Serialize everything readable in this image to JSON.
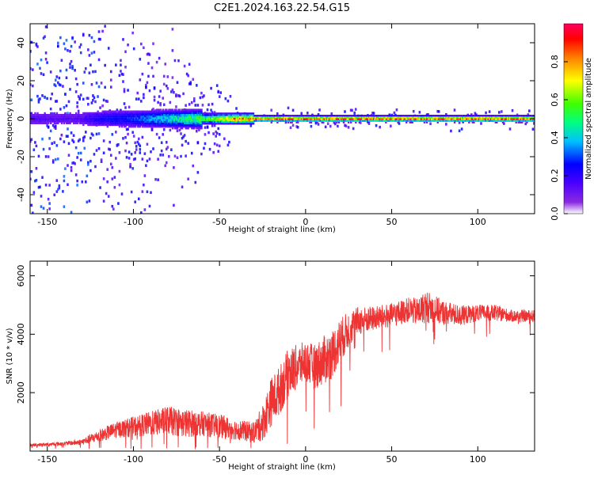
{
  "title": "C2E1.2024.163.22.54.G15",
  "colors": {
    "snr_line": "#ee3333",
    "axis": "#000000",
    "background": "#ffffff",
    "spectro_center": "#ff2a2a",
    "colormap": [
      "#ffffff",
      "#8a2be2",
      "#4b00ff",
      "#0000ff",
      "#00c0ff",
      "#00ff80",
      "#40ff00",
      "#ffff00",
      "#ff8000",
      "#ff0000",
      "#ff0060"
    ]
  },
  "chart_data": [
    {
      "type": "heatmap",
      "title": "C2E1.2024.163.22.54.G15",
      "xlabel": "Height of straight line (km)",
      "ylabel": "Frequency (Hz)",
      "xlim": [
        -160,
        133
      ],
      "ylim": [
        -50,
        50
      ],
      "x_ticks": [
        -150,
        -100,
        -50,
        0,
        50,
        100
      ],
      "y_ticks": [
        -40,
        -20,
        0,
        20,
        40
      ],
      "grid": false,
      "description_series": [
        {
          "name_hidden": true,
          "x": [
            -160,
            -130,
            -120,
            -100,
            -80,
            -60,
            -40,
            -20,
            0,
            20,
            50,
            75,
            100,
            133
          ],
          "y_center_hz": [
            0,
            0,
            0,
            0,
            0,
            0,
            0,
            0,
            0,
            0,
            0,
            0,
            0,
            0
          ],
          "peak_amplitude": [
            0.15,
            0.15,
            0.25,
            0.3,
            0.45,
            0.6,
            0.85,
            0.88,
            0.9,
            0.92,
            0.92,
            0.92,
            0.92,
            0.92
          ]
        }
      ],
      "colorbar": {
        "label": "Normalized spectral amplitude",
        "range": [
          0,
          1
        ],
        "ticks": [
          0.0,
          0.2,
          0.4,
          0.6,
          0.8
        ]
      }
    },
    {
      "type": "line",
      "xlabel": "Height of straight line (km)",
      "ylabel": "SNR (10 * v/v)",
      "xlim": [
        -160,
        133
      ],
      "ylim": [
        0,
        6500
      ],
      "x_ticks": [
        -150,
        -100,
        -50,
        0,
        50,
        100
      ],
      "y_ticks": [
        2000,
        4000,
        6000
      ],
      "grid": false,
      "x": [
        -160,
        -150,
        -140,
        -130,
        -120,
        -110,
        -100,
        -90,
        -80,
        -70,
        -60,
        -50,
        -40,
        -30,
        -25,
        -20,
        -15,
        -10,
        -5,
        0,
        5,
        10,
        15,
        20,
        25,
        30,
        40,
        50,
        60,
        65,
        70,
        75,
        80,
        90,
        100,
        110,
        120,
        133
      ],
      "series": [
        {
          "values": [
            200,
            220,
            250,
            300,
            500,
            700,
            800,
            900,
            1000,
            900,
            900,
            800,
            700,
            600,
            900,
            1600,
            2000,
            2600,
            2800,
            3000,
            2800,
            3000,
            3200,
            3700,
            4100,
            4400,
            4500,
            4600,
            4800,
            4700,
            4900,
            4800,
            4700,
            4600,
            4700,
            4700,
            4600,
            4600
          ],
          "spread": [
            80,
            80,
            100,
            150,
            300,
            400,
            500,
            600,
            700,
            700,
            600,
            600,
            500,
            500,
            900,
            1200,
            1200,
            1200,
            1100,
            1000,
            1100,
            1200,
            1200,
            1100,
            900,
            700,
            600,
            600,
            600,
            700,
            800,
            700,
            600,
            500,
            400,
            400,
            300,
            300
          ]
        }
      ]
    }
  ]
}
